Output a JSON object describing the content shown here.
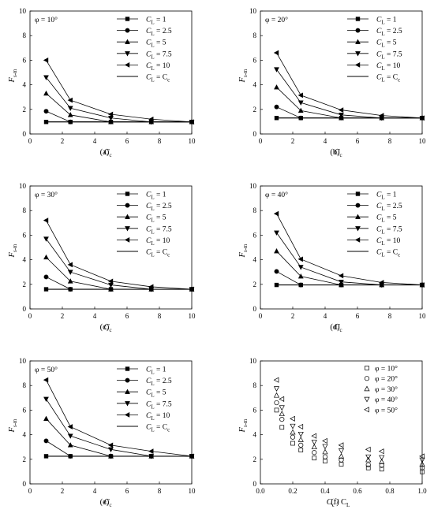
{
  "chart_data": [
    {
      "type": "line",
      "panel_label": "(a)",
      "annotation": "φ = 10°",
      "xlabel": "C",
      "xlabel_sub": "c",
      "ylabel": "F",
      "ylabel_sub": "s-m",
      "xlim": [
        0,
        10
      ],
      "ylim": [
        0,
        10
      ],
      "xticks": [
        0,
        2,
        4,
        6,
        8,
        10
      ],
      "yticks": [
        0,
        2,
        4,
        6,
        8,
        10
      ],
      "x": [
        1,
        2.5,
        5,
        7.5,
        10
      ],
      "legend_placement": "top-right",
      "series": [
        {
          "name": "C_L = 1",
          "label": "C",
          "sub": "L",
          "suffix": " = 1",
          "marker": "square",
          "values": [
            0.98,
            0.98,
            0.98,
            0.98,
            0.98
          ]
        },
        {
          "name": "C_L = 2.5",
          "label": "C",
          "sub": "L",
          "suffix": " = 2.5",
          "marker": "circle",
          "values": [
            1.85,
            0.98,
            0.98,
            0.98,
            0.98
          ]
        },
        {
          "name": "C_L = 5",
          "label": "C",
          "sub": "L",
          "suffix": " = 5",
          "marker": "triangle-up",
          "values": [
            3.3,
            1.55,
            0.98,
            0.98,
            0.98
          ]
        },
        {
          "name": "C_L = 7.5",
          "label": "C",
          "sub": "L",
          "suffix": " = 7.5",
          "marker": "triangle-down",
          "values": [
            4.6,
            2.1,
            1.3,
            0.98,
            0.98
          ]
        },
        {
          "name": "C_L = 10",
          "label": "C",
          "sub": "L",
          "suffix": " = 10",
          "marker": "triangle-left",
          "values": [
            6.0,
            2.75,
            1.6,
            1.2,
            0.98
          ]
        },
        {
          "name": "C_L = C_c",
          "label": "C",
          "sub": "L",
          "suffix": " = C",
          "suffix_sub": "c",
          "marker": "none",
          "values": [
            0.98,
            0.98,
            0.98,
            0.98,
            0.98
          ]
        }
      ]
    },
    {
      "type": "line",
      "panel_label": "(b)",
      "annotation": "φ = 20°",
      "xlabel": "C",
      "xlabel_sub": "c",
      "ylabel": "F",
      "ylabel_sub": "s-m",
      "xlim": [
        0,
        10
      ],
      "ylim": [
        0,
        10
      ],
      "xticks": [
        0,
        2,
        4,
        6,
        8,
        10
      ],
      "yticks": [
        0,
        2,
        4,
        6,
        8,
        10
      ],
      "x": [
        1,
        2.5,
        5,
        7.5,
        10
      ],
      "legend_placement": "top-right",
      "series": [
        {
          "name": "C_L = 1",
          "label": "C",
          "sub": "L",
          "suffix": " = 1",
          "marker": "square",
          "values": [
            1.3,
            1.3,
            1.3,
            1.3,
            1.3
          ]
        },
        {
          "name": "C_L = 2.5",
          "label": "C",
          "sub": "L",
          "suffix": " = 2.5",
          "marker": "circle",
          "values": [
            2.2,
            1.3,
            1.3,
            1.3,
            1.3
          ]
        },
        {
          "name": "C_L = 5",
          "label": "C",
          "sub": "L",
          "suffix": " = 5",
          "marker": "triangle-up",
          "values": [
            3.8,
            1.9,
            1.3,
            1.3,
            1.3
          ]
        },
        {
          "name": "C_L = 7.5",
          "label": "C",
          "sub": "L",
          "suffix": " = 7.5",
          "marker": "triangle-down",
          "values": [
            5.25,
            2.55,
            1.55,
            1.3,
            1.3
          ]
        },
        {
          "name": "C_L = 10",
          "label": "C",
          "sub": "L",
          "suffix": " = 10",
          "marker": "triangle-left",
          "values": [
            6.6,
            3.15,
            1.95,
            1.5,
            1.3
          ]
        },
        {
          "name": "C_L = C_c",
          "label": "C",
          "sub": "L",
          "suffix": " = C",
          "suffix_sub": "c",
          "marker": "none",
          "values": [
            1.3,
            1.3,
            1.3,
            1.3,
            1.3
          ]
        }
      ]
    },
    {
      "type": "line",
      "panel_label": "(c)",
      "annotation": "φ = 30°",
      "xlabel": "C",
      "xlabel_sub": "c",
      "ylabel": "F",
      "ylabel_sub": "s-m",
      "xlim": [
        0,
        10
      ],
      "ylim": [
        0,
        10
      ],
      "xticks": [
        0,
        2,
        4,
        6,
        8,
        10
      ],
      "yticks": [
        0,
        2,
        4,
        6,
        8,
        10
      ],
      "x": [
        1,
        2.5,
        5,
        7.5,
        10
      ],
      "legend_placement": "top-right",
      "series": [
        {
          "name": "C_L = 1",
          "label": "C",
          "sub": "L",
          "suffix": " = 1",
          "marker": "square",
          "values": [
            1.6,
            1.6,
            1.6,
            1.6,
            1.6
          ]
        },
        {
          "name": "C_L = 2.5",
          "label": "C",
          "sub": "L",
          "suffix": " = 2.5",
          "marker": "circle",
          "values": [
            2.6,
            1.6,
            1.6,
            1.6,
            1.6
          ]
        },
        {
          "name": "C_L = 5",
          "label": "C",
          "sub": "L",
          "suffix": " = 5",
          "marker": "triangle-up",
          "values": [
            4.2,
            2.25,
            1.6,
            1.6,
            1.6
          ]
        },
        {
          "name": "C_L = 7.5",
          "label": "C",
          "sub": "L",
          "suffix": " = 7.5",
          "marker": "triangle-down",
          "values": [
            5.7,
            3.0,
            1.95,
            1.6,
            1.6
          ]
        },
        {
          "name": "C_L = 10",
          "label": "C",
          "sub": "L",
          "suffix": " = 10",
          "marker": "triangle-left",
          "values": [
            7.2,
            3.6,
            2.25,
            1.8,
            1.6
          ]
        },
        {
          "name": "C_L = C_c",
          "label": "C",
          "sub": "L",
          "suffix": " = C",
          "suffix_sub": "c",
          "marker": "none",
          "values": [
            1.6,
            1.6,
            1.6,
            1.6,
            1.6
          ]
        }
      ]
    },
    {
      "type": "line",
      "panel_label": "(d)",
      "annotation": "φ = 40°",
      "xlabel": "C",
      "xlabel_sub": "c",
      "ylabel": "F",
      "ylabel_sub": "s-m",
      "xlim": [
        0,
        10
      ],
      "ylim": [
        0,
        10
      ],
      "xticks": [
        0,
        2,
        4,
        6,
        8,
        10
      ],
      "yticks": [
        0,
        2,
        4,
        6,
        8,
        10
      ],
      "x": [
        1,
        2.5,
        5,
        7.5,
        10
      ],
      "legend_placement": "top-right",
      "series": [
        {
          "name": "C_L = 1",
          "label": "C",
          "sub": "L",
          "suffix": " = 1",
          "marker": "square",
          "values": [
            1.95,
            1.95,
            1.95,
            1.95,
            1.95
          ]
        },
        {
          "name": "C_L = 2.5",
          "label": "C",
          "sub": "L",
          "suffix": " = 2.5",
          "marker": "circle",
          "values": [
            3.05,
            1.95,
            1.95,
            1.95,
            1.95
          ]
        },
        {
          "name": "C_L = 5",
          "label": "C",
          "sub": "L",
          "suffix": " = 5",
          "marker": "triangle-up",
          "values": [
            4.7,
            2.65,
            1.95,
            1.95,
            1.95
          ]
        },
        {
          "name": "C_L = 7.5",
          "label": "C",
          "sub": "L",
          "suffix": " = 7.5",
          "marker": "triangle-down",
          "values": [
            6.2,
            3.4,
            2.2,
            1.95,
            1.95
          ]
        },
        {
          "name": "C_L = 10",
          "label": "C",
          "sub": "L",
          "suffix": " = 10",
          "marker": "triangle-left",
          "values": [
            7.75,
            4.05,
            2.7,
            2.15,
            1.95
          ]
        },
        {
          "name": "C_L = C_c",
          "label": "C",
          "sub": "L",
          "suffix": " = C",
          "suffix_sub": "c",
          "marker": "none",
          "values": [
            1.95,
            1.95,
            1.95,
            1.95,
            1.95
          ]
        }
      ]
    },
    {
      "type": "line",
      "panel_label": "(e)",
      "annotation": "φ = 50°",
      "xlabel": "C",
      "xlabel_sub": "c",
      "ylabel": "F",
      "ylabel_sub": "s-m",
      "xlim": [
        0,
        10
      ],
      "ylim": [
        0,
        10
      ],
      "xticks": [
        0,
        2,
        4,
        6,
        8,
        10
      ],
      "yticks": [
        0,
        2,
        4,
        6,
        8,
        10
      ],
      "x": [
        1,
        2.5,
        5,
        7.5,
        10
      ],
      "legend_placement": "top-right",
      "series": [
        {
          "name": "C_L = 1",
          "label": "C",
          "sub": "L",
          "suffix": " = 1",
          "marker": "square",
          "values": [
            2.25,
            2.25,
            2.25,
            2.25,
            2.25
          ]
        },
        {
          "name": "C_L = 2.5",
          "label": "C",
          "sub": "L",
          "suffix": " = 2.5",
          "marker": "circle",
          "values": [
            3.5,
            2.25,
            2.25,
            2.25,
            2.25
          ]
        },
        {
          "name": "C_L = 5",
          "label": "C",
          "sub": "L",
          "suffix": " = 5",
          "marker": "triangle-up",
          "values": [
            5.3,
            3.15,
            2.25,
            2.25,
            2.25
          ]
        },
        {
          "name": "C_L = 7.5",
          "label": "C",
          "sub": "L",
          "suffix": " = 7.5",
          "marker": "triangle-down",
          "values": [
            6.9,
            3.9,
            2.8,
            2.25,
            2.25
          ]
        },
        {
          "name": "C_L = 10",
          "label": "C",
          "sub": "L",
          "suffix": " = 10",
          "marker": "triangle-left",
          "values": [
            8.45,
            4.65,
            3.15,
            2.65,
            2.25
          ]
        },
        {
          "name": "C_L = C_c",
          "label": "C",
          "sub": "L",
          "suffix": " = C",
          "suffix_sub": "c",
          "marker": "none",
          "values": [
            2.25,
            2.25,
            2.25,
            2.25,
            2.25
          ]
        }
      ]
    },
    {
      "type": "scatter",
      "panel_label": "(f)",
      "xlabel": "C",
      "xlabel_sub": "c",
      "xlabel_suffix": " / C",
      "xlabel_suffix_sub": "L",
      "ylabel": "F",
      "ylabel_sub": "s-m",
      "xlim": [
        0,
        1.0
      ],
      "ylim": [
        0,
        10
      ],
      "xticks": [
        0.0,
        0.2,
        0.4,
        0.6,
        0.8,
        1.0
      ],
      "yticks": [
        0,
        2,
        4,
        6,
        8,
        10
      ],
      "xtick_labels": [
        "0.0",
        "0.2",
        "0.4",
        "0.6",
        "0.8",
        "1.0"
      ],
      "legend_placement": "top-right",
      "series": [
        {
          "name": "φ = 10°",
          "marker": "square-open",
          "x": [
            0.1,
            0.133,
            0.2,
            0.25,
            0.333,
            0.4,
            0.5,
            0.667,
            0.75,
            1.0
          ],
          "values": [
            6.0,
            4.6,
            3.3,
            2.75,
            2.1,
            1.85,
            1.6,
            1.3,
            1.2,
            0.98
          ]
        },
        {
          "name": "φ = 20°",
          "marker": "circle-open",
          "x": [
            0.1,
            0.133,
            0.2,
            0.25,
            0.333,
            0.4,
            0.5,
            0.667,
            0.75,
            1.0
          ],
          "values": [
            6.6,
            5.25,
            3.8,
            3.15,
            2.55,
            2.2,
            1.95,
            1.55,
            1.5,
            1.3
          ]
        },
        {
          "name": "φ = 30°",
          "marker": "triangle-up-open",
          "x": [
            0.1,
            0.133,
            0.2,
            0.25,
            0.333,
            0.4,
            0.5,
            0.667,
            0.75,
            1.0
          ],
          "values": [
            7.2,
            5.7,
            4.2,
            3.6,
            3.0,
            2.6,
            2.25,
            1.95,
            1.8,
            1.6
          ]
        },
        {
          "name": "φ = 40°",
          "marker": "triangle-down-open",
          "x": [
            0.1,
            0.133,
            0.2,
            0.25,
            0.333,
            0.4,
            0.5,
            0.667,
            0.75,
            1.0
          ],
          "values": [
            7.75,
            6.2,
            4.7,
            4.05,
            3.4,
            3.05,
            2.7,
            2.2,
            2.15,
            1.95
          ]
        },
        {
          "name": "φ = 50°",
          "marker": "triangle-left-open",
          "x": [
            0.1,
            0.133,
            0.2,
            0.25,
            0.333,
            0.4,
            0.5,
            0.667,
            0.75,
            1.0
          ],
          "values": [
            8.45,
            6.9,
            5.3,
            4.65,
            3.9,
            3.5,
            3.15,
            2.8,
            2.65,
            2.25
          ]
        }
      ]
    }
  ]
}
